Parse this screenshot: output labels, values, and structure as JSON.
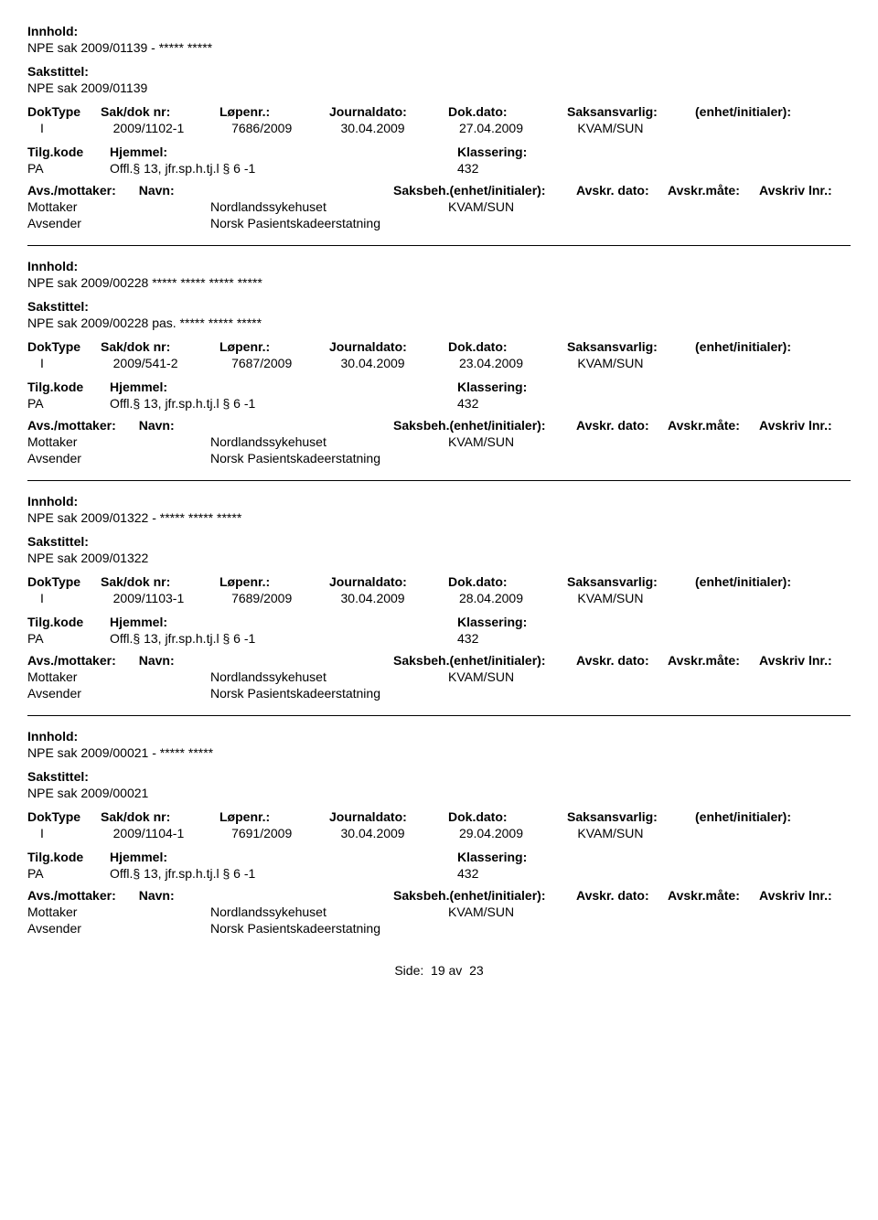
{
  "labels": {
    "innhold": "Innhold:",
    "sakstittel": "Sakstittel:",
    "doktype": "DokType",
    "sakdok": "Sak/dok nr:",
    "lopenr": "Løpenr.:",
    "journaldato": "Journaldato:",
    "dokdato": "Dok.dato:",
    "saksansvarlig": "Saksansvarlig:",
    "enhet": "(enhet/initialer):",
    "tilgkode": "Tilg.kode",
    "hjemmel": "Hjemmel:",
    "klassering": "Klassering:",
    "avsmottaker": "Avs./mottaker:",
    "navn": "Navn:",
    "saksbeh": "Saksbeh.",
    "saksbeh_enhet": "(enhet/initialer):",
    "avskr_dato": "Avskr. dato:",
    "avskr_mate": "Avskr.måte:",
    "avskriv_lnr": "Avskriv lnr.:",
    "mottaker": "Mottaker",
    "avsender": "Avsender"
  },
  "records": [
    {
      "innhold": "NPE sak 2009/01139 - ***** *****",
      "sakstittel": "NPE sak 2009/01139",
      "doktype": "I",
      "sakdok": "2009/1102-1",
      "lopenr": "7686/2009",
      "journaldato": "30.04.2009",
      "dokdato": "27.04.2009",
      "saksansvarlig": "KVAM/SUN",
      "enhet": "",
      "tilgkode": "PA",
      "hjemmel": "Offl.§ 13, jfr.sp.h.tj.l § 6 -1",
      "klassering": "432",
      "mottaker_navn": "Nordlandssykehuset",
      "avsender_navn": "Norsk Pasientskadeerstatning",
      "saksbeh_val": "KVAM/SUN"
    },
    {
      "innhold": "NPE sak 2009/00228     *****  *****  *****  *****",
      "sakstittel": "NPE sak 2009/00228   pas.  *****  *****  *****",
      "doktype": "I",
      "sakdok": "2009/541-2",
      "lopenr": "7687/2009",
      "journaldato": "30.04.2009",
      "dokdato": "23.04.2009",
      "saksansvarlig": "KVAM/SUN",
      "enhet": "",
      "tilgkode": "PA",
      "hjemmel": "Offl.§ 13, jfr.sp.h.tj.l § 6 -1",
      "klassering": "432",
      "mottaker_navn": "Nordlandssykehuset",
      "avsender_navn": "Norsk Pasientskadeerstatning",
      "saksbeh_val": "KVAM/SUN"
    },
    {
      "innhold": "NPE sak 2009/01322 - ***** ***** *****",
      "sakstittel": "NPE sak 2009/01322",
      "doktype": "I",
      "sakdok": "2009/1103-1",
      "lopenr": "7689/2009",
      "journaldato": "30.04.2009",
      "dokdato": "28.04.2009",
      "saksansvarlig": "KVAM/SUN",
      "enhet": "",
      "tilgkode": "PA",
      "hjemmel": "Offl.§ 13, jfr.sp.h.tj.l § 6 -1",
      "klassering": "432",
      "mottaker_navn": "Nordlandssykehuset",
      "avsender_navn": "Norsk Pasientskadeerstatning",
      "saksbeh_val": "KVAM/SUN"
    },
    {
      "innhold": "NPE sak 2009/00021 - ***** *****",
      "sakstittel": "NPE sak 2009/00021",
      "doktype": "I",
      "sakdok": "2009/1104-1",
      "lopenr": "7691/2009",
      "journaldato": "30.04.2009",
      "dokdato": "29.04.2009",
      "saksansvarlig": "KVAM/SUN",
      "enhet": "",
      "tilgkode": "PA",
      "hjemmel": "Offl.§ 13, jfr.sp.h.tj.l § 6 -1",
      "klassering": "432",
      "mottaker_navn": "Nordlandssykehuset",
      "avsender_navn": "Norsk Pasientskadeerstatning",
      "saksbeh_val": "KVAM/SUN"
    }
  ],
  "footer": {
    "side_label": "Side:",
    "page": "19",
    "av": "av",
    "total": "23"
  }
}
